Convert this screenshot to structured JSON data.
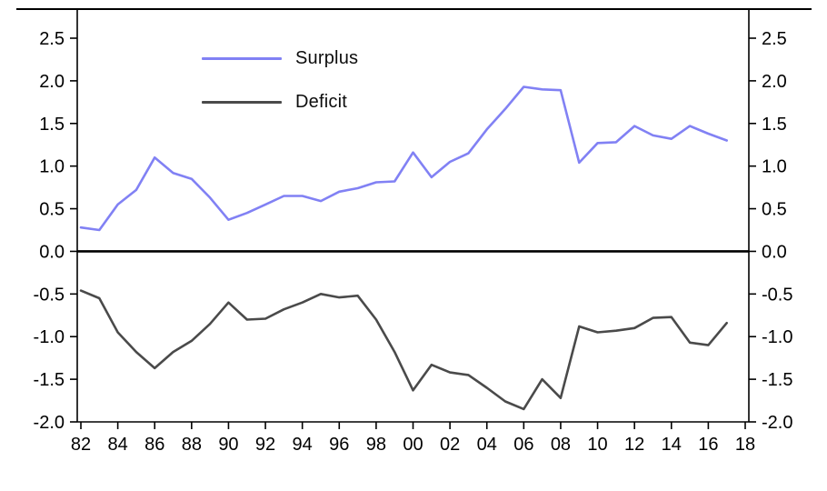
{
  "chart_data": {
    "type": "line",
    "title": "",
    "xlabel": "",
    "ylabel": "",
    "x": [
      1982,
      1983,
      1984,
      1985,
      1986,
      1987,
      1988,
      1989,
      1990,
      1991,
      1992,
      1993,
      1994,
      1995,
      1996,
      1997,
      1998,
      1999,
      2000,
      2001,
      2002,
      2003,
      2004,
      2005,
      2006,
      2007,
      2008,
      2009,
      2010,
      2011,
      2012,
      2013,
      2014,
      2015,
      2016,
      2017
    ],
    "series": [
      {
        "name": "Surplus",
        "color": "#8181f4",
        "values": [
          0.28,
          0.25,
          0.55,
          0.72,
          1.1,
          0.92,
          0.85,
          0.63,
          0.37,
          0.45,
          0.55,
          0.65,
          0.65,
          0.59,
          0.7,
          0.74,
          0.81,
          0.82,
          1.16,
          0.87,
          1.05,
          1.15,
          1.43,
          1.67,
          1.93,
          1.9,
          1.89,
          1.04,
          1.27,
          1.28,
          1.47,
          1.36,
          1.32,
          1.47,
          1.38,
          1.3
        ]
      },
      {
        "name": "Deficit",
        "color": "#4a4a4a",
        "values": [
          -0.46,
          -0.55,
          -0.95,
          -1.18,
          -1.37,
          -1.18,
          -1.05,
          -0.85,
          -0.6,
          -0.8,
          -0.79,
          -0.68,
          -0.6,
          -0.5,
          -0.54,
          -0.52,
          -0.8,
          -1.18,
          -1.63,
          -1.33,
          -1.42,
          -1.45,
          -1.6,
          -1.76,
          -1.85,
          -1.5,
          -1.72,
          -0.88,
          -0.95,
          -0.93,
          -0.9,
          -0.78,
          -0.77,
          -1.07,
          -1.1,
          -0.84
        ]
      }
    ],
    "xlim": [
      1982,
      2018
    ],
    "ylim": [
      -2.0,
      2.5
    ],
    "ytick_values": [
      2.5,
      2.0,
      1.5,
      1.0,
      0.5,
      0.0,
      -0.5,
      -1.0,
      -1.5,
      -2.0
    ],
    "yticks": [
      "2.5",
      "2.0",
      "1.5",
      "1.0",
      "0.5",
      "0.0",
      "-0.5",
      "-1.0",
      "-1.5",
      "-2.0"
    ],
    "xtick_years": [
      1982,
      1984,
      1986,
      1988,
      1990,
      1992,
      1994,
      1996,
      1998,
      2000,
      2002,
      2004,
      2006,
      2008,
      2010,
      2012,
      2014,
      2016,
      2018
    ],
    "xtick_labels": [
      "82",
      "84",
      "86",
      "88",
      "90",
      "92",
      "94",
      "96",
      "98",
      "00",
      "02",
      "04",
      "06",
      "08",
      "10",
      "12",
      "14",
      "16",
      "18"
    ],
    "legend_position": "top-left-inside",
    "grid": false,
    "axes": {
      "left_ticks": true,
      "right_ticks": true,
      "bottom_ticks": true,
      "zero_line": true
    },
    "colors": {
      "axis": "#000000",
      "background": "#ffffff",
      "tick_label": "#000000"
    }
  }
}
